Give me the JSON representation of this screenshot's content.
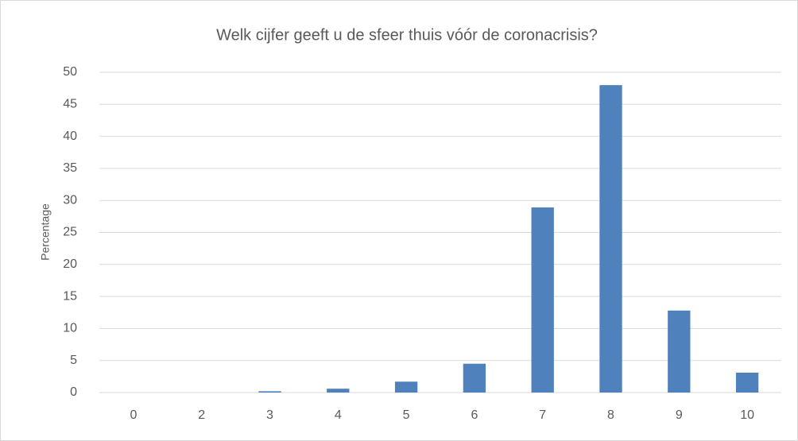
{
  "chart_data": {
    "type": "bar",
    "title": "Welk cijfer geeft u de sfeer thuis vóór de coronacrisis?",
    "y_label": "Percentage",
    "categories": [
      "0",
      "2",
      "3",
      "4",
      "5",
      "6",
      "7",
      "8",
      "9",
      "10"
    ],
    "values": [
      0,
      0,
      0.2,
      0.6,
      1.7,
      4.5,
      28.9,
      48,
      12.8,
      3.1
    ],
    "color": "#4f81bd",
    "ylim": [
      0,
      50
    ],
    "yticks": [
      0,
      5,
      10,
      15,
      20,
      25,
      30,
      35,
      40,
      45,
      50
    ],
    "grid": true
  }
}
